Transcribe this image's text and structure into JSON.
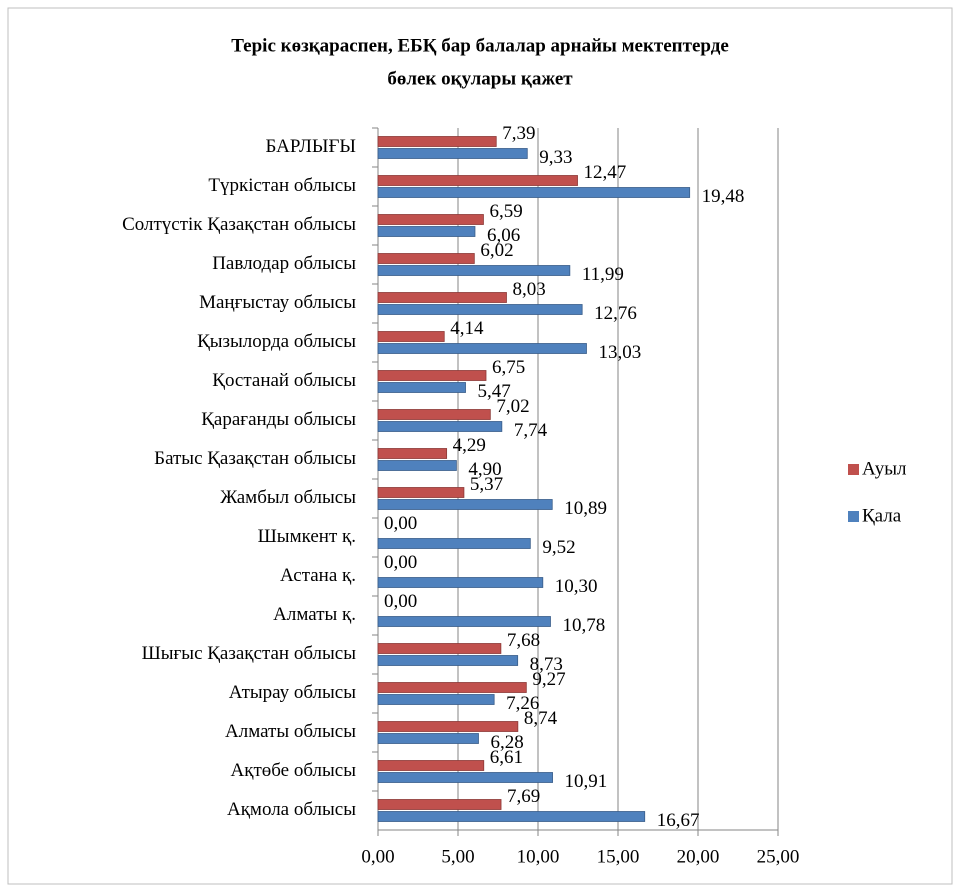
{
  "chart_data": {
    "type": "barh",
    "title": [
      "Теріс көзқараспен, ЕБҚ бар балалар арнайы мектептерде",
      "бөлек оқулары қажет"
    ],
    "categories": [
      "БАРЛЫҒЫ",
      "Түркістан облысы",
      "Солтүстік Қазақстан облысы",
      "Павлодар облысы",
      "Маңғыстау облысы",
      "Қызылорда облысы",
      "Қостанай облысы",
      "Қарағанды облысы",
      "Батыс Қазақстан облысы",
      "Жамбыл облысы",
      "Шымкент қ.",
      "Астана қ.",
      "Алматы қ.",
      "Шығыс Қазақстан облысы",
      "Атырау облысы",
      "Алматы облысы",
      "Ақтөбе облысы",
      "Ақмола облысы"
    ],
    "series": [
      {
        "name": "Ауыл",
        "color": "#c0504d",
        "values": [
          7.39,
          12.47,
          6.59,
          6.02,
          8.03,
          4.14,
          6.75,
          7.02,
          4.29,
          5.37,
          0,
          0,
          0,
          7.68,
          9.27,
          8.74,
          6.61,
          7.69
        ],
        "value_labels": [
          "7,39",
          "12,47",
          "6,59",
          "6,02",
          "8,03",
          "4,14",
          "6,75",
          "7,02",
          "4,29",
          "5,37",
          "0,00",
          "0,00",
          "0,00",
          "7,68",
          "9,27",
          "8,74",
          "6,61",
          "7,69"
        ]
      },
      {
        "name": "Қала",
        "color": "#4f81bd",
        "values": [
          9.33,
          19.48,
          6.06,
          11.99,
          12.76,
          13.03,
          5.47,
          7.74,
          4.9,
          10.89,
          9.52,
          10.3,
          10.78,
          8.73,
          7.26,
          6.28,
          10.91,
          16.67
        ],
        "value_labels": [
          "9,33",
          "19,48",
          "6,06",
          "11,99",
          "12,76",
          "13,03",
          "5,47",
          "7,74",
          "4,90",
          "10,89",
          "9,52",
          "10,30",
          "10,78",
          "8,73",
          "7,26",
          "6,28",
          "10,91",
          "16,67"
        ]
      }
    ],
    "xlim": [
      0,
      25
    ],
    "xticks": [
      {
        "value": 0,
        "label": "0,00"
      },
      {
        "value": 5,
        "label": "5,00"
      },
      {
        "value": 10,
        "label": "10,00"
      },
      {
        "value": 15,
        "label": "15,00"
      },
      {
        "value": 20,
        "label": "20,00"
      },
      {
        "value": 25,
        "label": "25,00"
      }
    ],
    "grid": true,
    "legend": "right"
  }
}
